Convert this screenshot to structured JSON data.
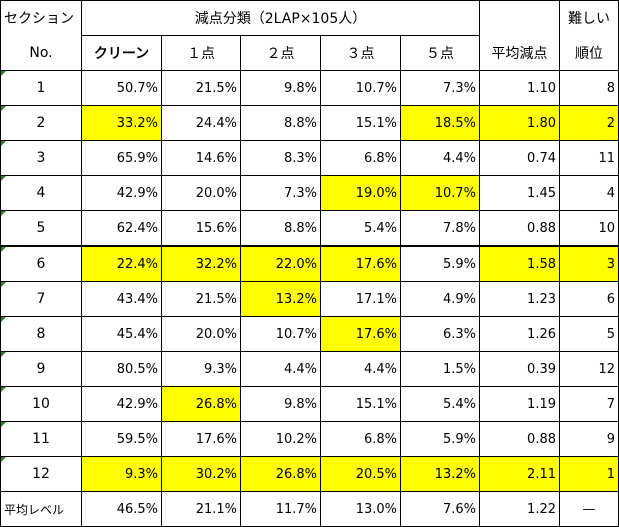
{
  "header": {
    "section_label": "セクション",
    "no_label": "No.",
    "group_title": "減点分類（2LAP×105人）",
    "difficulty_label": "難しい",
    "rank_label": "順位",
    "columns": [
      "クリーン",
      "１点",
      "２点",
      "３点",
      "５点",
      "平均減点"
    ]
  },
  "rows": [
    {
      "no": "1",
      "clean": "50.7%",
      "p1": "21.5%",
      "p2": "9.8%",
      "p3": "10.7%",
      "p5": "7.3%",
      "avg": "1.10",
      "rank": "8"
    },
    {
      "no": "2",
      "clean": "33.2%",
      "p1": "24.4%",
      "p2": "8.8%",
      "p3": "15.1%",
      "p5": "18.5%",
      "avg": "1.80",
      "rank": "2"
    },
    {
      "no": "3",
      "clean": "65.9%",
      "p1": "14.6%",
      "p2": "8.3%",
      "p3": "6.8%",
      "p5": "4.4%",
      "avg": "0.74",
      "rank": "11"
    },
    {
      "no": "4",
      "clean": "42.9%",
      "p1": "20.0%",
      "p2": "7.3%",
      "p3": "19.0%",
      "p5": "10.7%",
      "avg": "1.45",
      "rank": "4"
    },
    {
      "no": "5",
      "clean": "62.4%",
      "p1": "15.6%",
      "p2": "8.8%",
      "p3": "5.4%",
      "p5": "7.8%",
      "avg": "0.88",
      "rank": "10"
    },
    {
      "no": "6",
      "clean": "22.4%",
      "p1": "32.2%",
      "p2": "22.0%",
      "p3": "17.6%",
      "p5": "5.9%",
      "avg": "1.58",
      "rank": "3"
    },
    {
      "no": "7",
      "clean": "43.4%",
      "p1": "21.5%",
      "p2": "13.2%",
      "p3": "17.1%",
      "p5": "4.9%",
      "avg": "1.23",
      "rank": "6"
    },
    {
      "no": "8",
      "clean": "45.4%",
      "p1": "20.0%",
      "p2": "10.7%",
      "p3": "17.6%",
      "p5": "6.3%",
      "avg": "1.26",
      "rank": "5"
    },
    {
      "no": "9",
      "clean": "80.5%",
      "p1": "9.3%",
      "p2": "4.4%",
      "p3": "4.4%",
      "p5": "1.5%",
      "avg": "0.39",
      "rank": "12"
    },
    {
      "no": "10",
      "clean": "42.9%",
      "p1": "26.8%",
      "p2": "9.8%",
      "p3": "15.1%",
      "p5": "5.4%",
      "avg": "1.19",
      "rank": "7"
    },
    {
      "no": "11",
      "clean": "59.5%",
      "p1": "17.6%",
      "p2": "10.2%",
      "p3": "6.8%",
      "p5": "5.9%",
      "avg": "0.88",
      "rank": "9"
    },
    {
      "no": "12",
      "clean": "9.3%",
      "p1": "30.2%",
      "p2": "26.8%",
      "p3": "20.5%",
      "p5": "13.2%",
      "avg": "2.11",
      "rank": "1"
    }
  ],
  "footer": {
    "label": "平均レベル",
    "clean": "46.5%",
    "p1": "21.1%",
    "p2": "11.7%",
    "p3": "13.0%",
    "p5": "7.6%",
    "avg": "1.22",
    "rank": "—"
  },
  "colors": {
    "highlight": "#ffff00",
    "grid": "#000000",
    "comment_marker": "#2e7d32"
  }
}
